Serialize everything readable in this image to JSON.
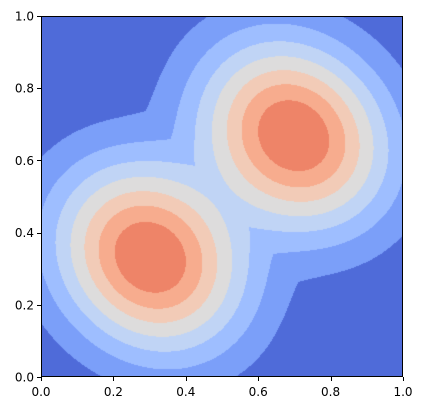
{
  "chart_data": {
    "type": "heatmap",
    "subtype": "filled-contour",
    "colormap": "coolwarm",
    "xlim": [
      0.0,
      1.0
    ],
    "ylim": [
      0.0,
      1.0
    ],
    "x_ticks": [
      "0.0",
      "0.2",
      "0.4",
      "0.6",
      "0.8",
      "1.0"
    ],
    "y_ticks": [
      "0.0",
      "0.2",
      "0.4",
      "0.6",
      "0.8",
      "1.0"
    ],
    "grid": false,
    "levels": [
      0.0,
      0.125,
      0.25,
      0.375,
      0.5,
      0.625,
      0.75,
      0.875,
      1.0
    ],
    "level_colors": [
      "#4f6bd9",
      "#7b9ff9",
      "#9ebeff",
      "#c0d4f5",
      "#dddcdc",
      "#f2cbb7",
      "#f7ac8e",
      "#ee8468",
      "#d0473d"
    ],
    "peaks": [
      {
        "x": 0.3,
        "y": 0.33,
        "value": 1.0
      },
      {
        "x": 0.7,
        "y": 0.67,
        "value": 1.0
      }
    ]
  }
}
